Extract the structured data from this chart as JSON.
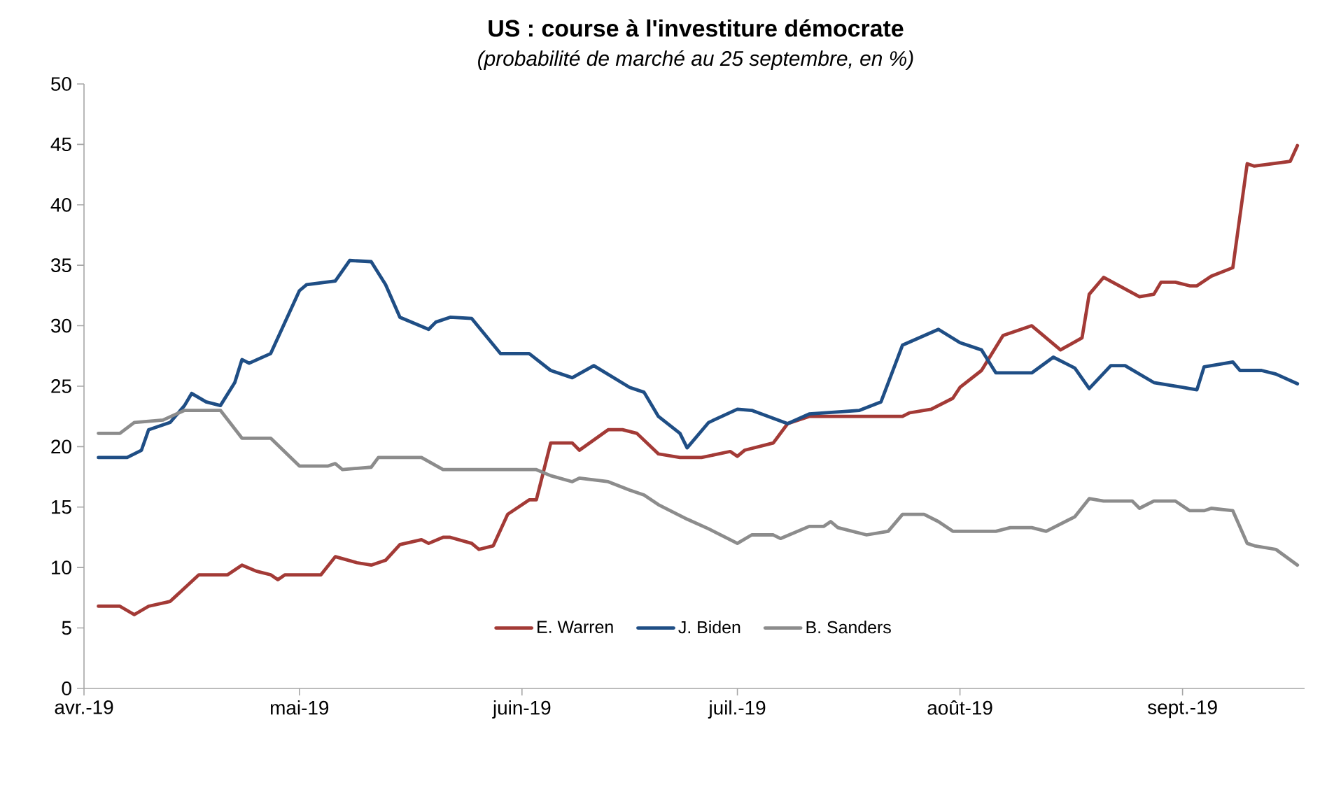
{
  "chart_data": {
    "type": "line",
    "title": "US : course à l'investiture démocrate",
    "subtitle": "(probabilité de marché au 25 septembre, en %)",
    "xlim": [
      "2019-04-01",
      "2019-09-18"
    ],
    "xticks": [
      {
        "value": "2019-04-01",
        "label": "avr.-19"
      },
      {
        "value": "2019-05-01",
        "label": "mai-19"
      },
      {
        "value": "2019-06-01",
        "label": "juin-19"
      },
      {
        "value": "2019-07-01",
        "label": "juil.-19"
      },
      {
        "value": "2019-08-01",
        "label": "août-19"
      },
      {
        "value": "2019-09-01",
        "label": "sept.-19"
      }
    ],
    "ylim": [
      0,
      50
    ],
    "yticks": [
      0,
      5,
      10,
      15,
      20,
      25,
      30,
      35,
      40,
      45,
      50
    ],
    "legend": "bottom",
    "line_style": "solid",
    "grid": false,
    "series": [
      {
        "name": "E. Warren",
        "color": "#a33a36",
        "x": [
          "2019-04-03",
          "2019-04-06",
          "2019-04-08",
          "2019-04-10",
          "2019-04-13",
          "2019-04-17",
          "2019-04-21",
          "2019-04-23",
          "2019-04-25",
          "2019-04-27",
          "2019-04-28",
          "2019-04-29",
          "2019-05-04",
          "2019-05-06",
          "2019-05-09",
          "2019-05-11",
          "2019-05-13",
          "2019-05-15",
          "2019-05-18",
          "2019-05-19",
          "2019-05-21",
          "2019-05-22",
          "2019-05-25",
          "2019-05-26",
          "2019-05-28",
          "2019-05-30",
          "2019-06-02",
          "2019-06-03",
          "2019-06-05",
          "2019-06-08",
          "2019-06-09",
          "2019-06-13",
          "2019-06-15",
          "2019-06-17",
          "2019-06-20",
          "2019-06-23",
          "2019-06-26",
          "2019-06-30",
          "2019-07-01",
          "2019-07-02",
          "2019-07-06",
          "2019-07-08",
          "2019-07-11",
          "2019-07-24",
          "2019-07-25",
          "2019-07-28",
          "2019-07-31",
          "2019-08-01",
          "2019-08-04",
          "2019-08-07",
          "2019-08-11",
          "2019-08-15",
          "2019-08-18",
          "2019-08-19",
          "2019-08-21",
          "2019-08-26",
          "2019-08-28",
          "2019-08-29",
          "2019-08-31",
          "2019-09-02",
          "2019-09-03",
          "2019-09-05",
          "2019-09-08",
          "2019-09-10",
          "2019-09-11",
          "2019-09-16",
          "2019-09-17"
        ],
        "values": [
          6.8,
          6.8,
          6.1,
          6.8,
          7.2,
          9.4,
          9.4,
          10.2,
          9.7,
          9.4,
          9.0,
          9.4,
          9.4,
          10.9,
          10.4,
          10.2,
          10.6,
          11.9,
          12.3,
          12.0,
          12.5,
          12.5,
          12.0,
          11.5,
          11.8,
          14.4,
          15.6,
          15.6,
          20.3,
          20.3,
          19.7,
          21.4,
          21.4,
          21.1,
          19.4,
          19.1,
          19.1,
          19.6,
          19.2,
          19.7,
          20.3,
          21.9,
          22.5,
          22.5,
          22.8,
          23.1,
          24.0,
          24.9,
          26.3,
          29.2,
          30.0,
          28.0,
          29.0,
          32.6,
          34.0,
          32.4,
          32.6,
          33.6,
          33.6,
          33.3,
          33.3,
          34.1,
          34.8,
          43.4,
          43.2,
          43.6,
          44.9
        ]
      },
      {
        "name": "J. Biden",
        "color": "#1f4e85",
        "x": [
          "2019-04-03",
          "2019-04-07",
          "2019-04-09",
          "2019-04-10",
          "2019-04-13",
          "2019-04-15",
          "2019-04-16",
          "2019-04-18",
          "2019-04-20",
          "2019-04-22",
          "2019-04-23",
          "2019-04-24",
          "2019-04-27",
          "2019-05-01",
          "2019-05-02",
          "2019-05-06",
          "2019-05-08",
          "2019-05-11",
          "2019-05-13",
          "2019-05-15",
          "2019-05-19",
          "2019-05-20",
          "2019-05-22",
          "2019-05-25",
          "2019-05-29",
          "2019-06-02",
          "2019-06-05",
          "2019-06-08",
          "2019-06-11",
          "2019-06-16",
          "2019-06-18",
          "2019-06-20",
          "2019-06-23",
          "2019-06-24",
          "2019-06-27",
          "2019-07-01",
          "2019-07-03",
          "2019-07-08",
          "2019-07-11",
          "2019-07-18",
          "2019-07-21",
          "2019-07-24",
          "2019-07-29",
          "2019-08-01",
          "2019-08-04",
          "2019-08-06",
          "2019-08-11",
          "2019-08-14",
          "2019-08-17",
          "2019-08-19",
          "2019-08-22",
          "2019-08-24",
          "2019-08-28",
          "2019-09-01",
          "2019-09-03",
          "2019-09-04",
          "2019-09-08",
          "2019-09-09",
          "2019-09-12",
          "2019-09-14",
          "2019-09-17"
        ],
        "values": [
          19.1,
          19.1,
          19.7,
          21.4,
          22.0,
          23.4,
          24.4,
          23.7,
          23.4,
          25.3,
          27.2,
          26.9,
          27.7,
          32.9,
          33.4,
          33.7,
          35.4,
          35.3,
          33.4,
          30.7,
          29.7,
          30.3,
          30.7,
          30.6,
          27.7,
          27.7,
          26.3,
          25.7,
          26.7,
          24.9,
          24.5,
          22.5,
          21.1,
          19.9,
          22.0,
          23.1,
          23.0,
          21.9,
          22.7,
          23.0,
          23.7,
          28.4,
          29.7,
          28.6,
          28.0,
          26.1,
          26.1,
          27.4,
          26.5,
          24.8,
          26.7,
          26.7,
          25.3,
          24.9,
          24.7,
          26.6,
          27.0,
          26.3,
          26.3,
          26.0,
          25.2
        ]
      },
      {
        "name": "B. Sanders",
        "color": "#8c8c8c",
        "x": [
          "2019-04-03",
          "2019-04-06",
          "2019-04-08",
          "2019-04-12",
          "2019-04-15",
          "2019-04-20",
          "2019-04-23",
          "2019-04-27",
          "2019-05-01",
          "2019-05-05",
          "2019-05-06",
          "2019-05-07",
          "2019-05-11",
          "2019-05-12",
          "2019-05-18",
          "2019-05-21",
          "2019-06-02",
          "2019-06-03",
          "2019-06-05",
          "2019-06-08",
          "2019-06-09",
          "2019-06-13",
          "2019-06-16",
          "2019-06-18",
          "2019-06-20",
          "2019-06-24",
          "2019-06-27",
          "2019-07-01",
          "2019-07-03",
          "2019-07-06",
          "2019-07-07",
          "2019-07-11",
          "2019-07-13",
          "2019-07-14",
          "2019-07-15",
          "2019-07-19",
          "2019-07-22",
          "2019-07-24",
          "2019-07-27",
          "2019-07-29",
          "2019-07-31",
          "2019-08-06",
          "2019-08-08",
          "2019-08-11",
          "2019-08-13",
          "2019-08-17",
          "2019-08-19",
          "2019-08-21",
          "2019-08-25",
          "2019-08-26",
          "2019-08-28",
          "2019-08-31",
          "2019-09-02",
          "2019-09-04",
          "2019-09-05",
          "2019-09-08",
          "2019-09-10",
          "2019-09-11",
          "2019-09-14",
          "2019-09-17"
        ],
        "values": [
          21.1,
          21.1,
          22.0,
          22.2,
          23.0,
          23.0,
          20.7,
          20.7,
          18.4,
          18.4,
          18.6,
          18.1,
          18.3,
          19.1,
          19.1,
          18.1,
          18.1,
          18.1,
          17.6,
          17.1,
          17.4,
          17.1,
          16.4,
          16.0,
          15.2,
          14.0,
          13.2,
          12.0,
          12.7,
          12.7,
          12.4,
          13.4,
          13.4,
          13.8,
          13.3,
          12.7,
          13.0,
          14.4,
          14.4,
          13.8,
          13.0,
          13.0,
          13.3,
          13.3,
          13.0,
          14.2,
          15.7,
          15.5,
          15.5,
          14.9,
          15.5,
          15.5,
          14.7,
          14.7,
          14.9,
          14.7,
          12.0,
          11.8,
          11.5,
          10.2
        ]
      }
    ]
  }
}
